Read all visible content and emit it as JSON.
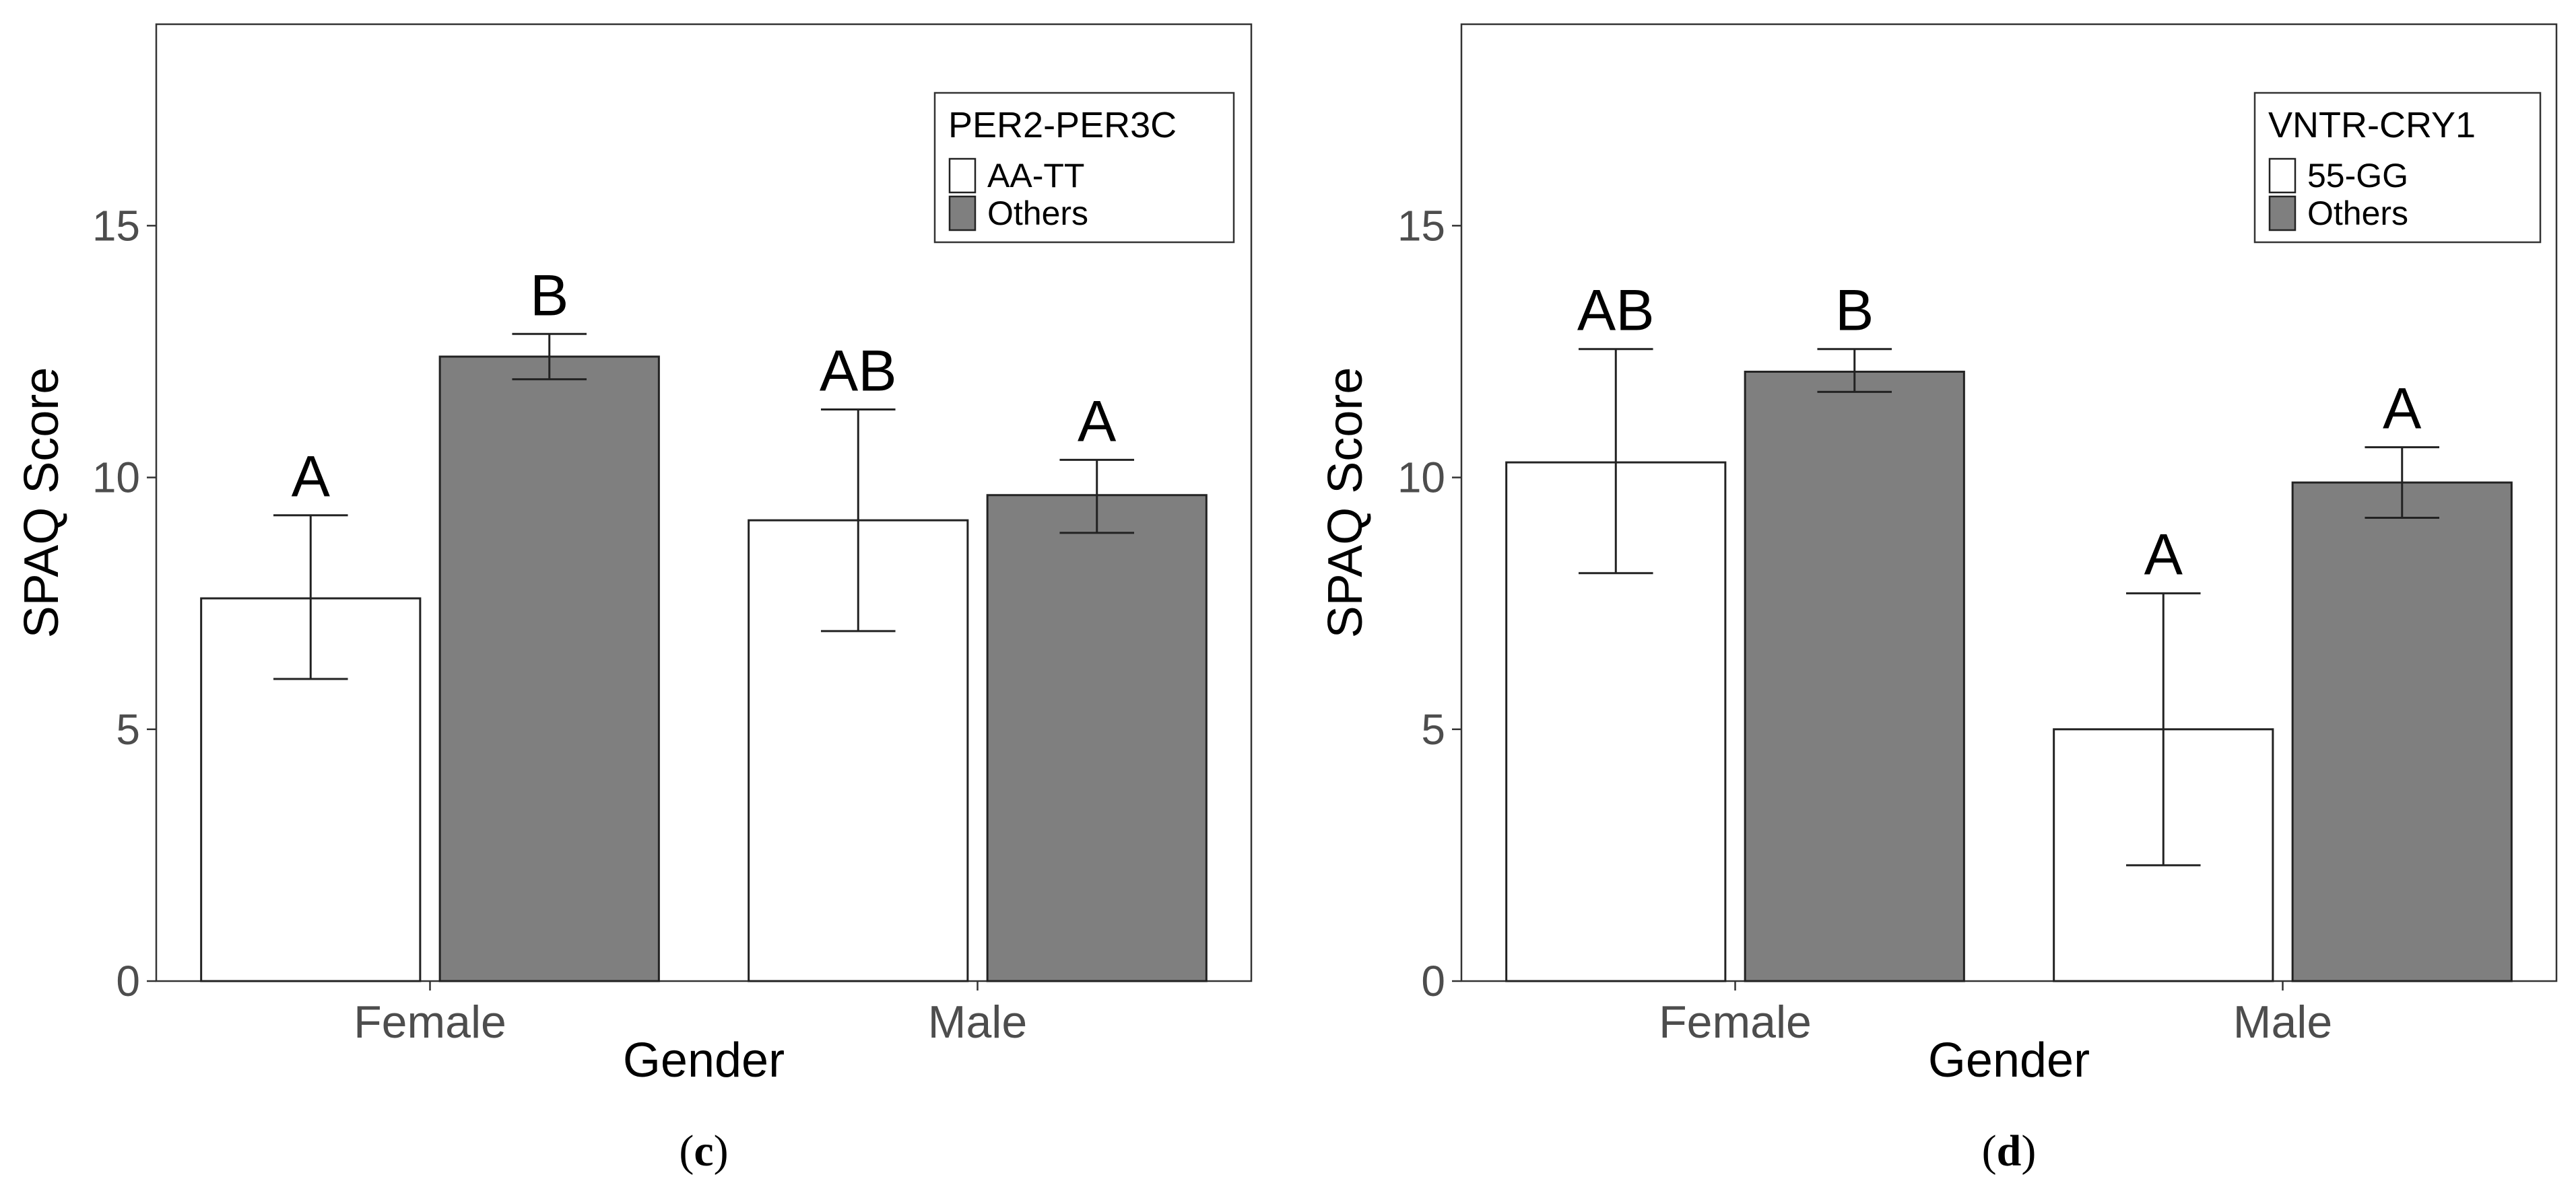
{
  "chart_data": [
    {
      "type": "bar",
      "panel_label": "c",
      "xlabel": "Gender",
      "ylabel": "SPAQ Score",
      "ylim": [
        0,
        19
      ],
      "yticks": [
        0,
        5,
        10,
        15
      ],
      "grid": false,
      "legend": {
        "title": "PER2-PER3C",
        "position": "top-right"
      },
      "categories": [
        "Female",
        "Male"
      ],
      "series": [
        {
          "name": "AA-TT",
          "color": "#ffffff",
          "values": [
            7.6,
            9.15
          ],
          "err_low": [
            6.0,
            6.95
          ],
          "err_high": [
            9.25,
            11.35
          ],
          "letters": [
            "A",
            "AB"
          ]
        },
        {
          "name": "Others",
          "color": "#7f7f7f",
          "values": [
            12.4,
            9.65
          ],
          "err_low": [
            11.95,
            8.9
          ],
          "err_high": [
            12.85,
            10.35
          ],
          "letters": [
            "B",
            "A"
          ]
        }
      ]
    },
    {
      "type": "bar",
      "panel_label": "d",
      "xlabel": "Gender",
      "ylabel": "SPAQ Score",
      "ylim": [
        0,
        19
      ],
      "yticks": [
        0,
        5,
        10,
        15
      ],
      "grid": false,
      "legend": {
        "title": "VNTR-CRY1",
        "position": "top-right"
      },
      "categories": [
        "Female",
        "Male"
      ],
      "series": [
        {
          "name": "55-GG",
          "color": "#ffffff",
          "values": [
            10.3,
            5.0
          ],
          "err_low": [
            8.1,
            2.3
          ],
          "err_high": [
            12.55,
            7.7
          ],
          "letters": [
            "AB",
            "A"
          ]
        },
        {
          "name": "Others",
          "color": "#7f7f7f",
          "values": [
            12.1,
            9.9
          ],
          "err_low": [
            11.7,
            9.2
          ],
          "err_high": [
            12.55,
            10.6
          ],
          "letters": [
            "B",
            "A"
          ]
        }
      ]
    }
  ]
}
